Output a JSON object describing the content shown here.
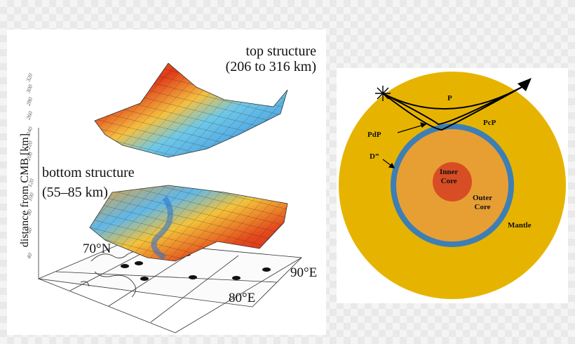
{
  "left_figure": {
    "top_structure": {
      "title": "top structure",
      "range": "(206 to 316 km)"
    },
    "bottom_structure": {
      "title": "bottom structure",
      "range": "(55–85 km)"
    },
    "y_axis_label": "distance from CMB [km]",
    "y_ticks_top": [
      "200",
      "220",
      "240",
      "260",
      "280",
      "300",
      "320"
    ],
    "y_ticks_bottom": [
      "40",
      "60",
      "80",
      "100",
      "120"
    ],
    "geo_labels": {
      "lat": "70°N",
      "lon1": "80°E",
      "lon2": "90°E"
    },
    "colors": {
      "high": "#d92c18",
      "mid": "#f5b22a",
      "low": "#3f8fe0"
    }
  },
  "right_figure": {
    "labels": {
      "p": "P",
      "pdp": "PdP",
      "pcp": "PcP",
      "d_double_prime": "D”",
      "inner_core": [
        "Inner",
        "Core"
      ],
      "outer_core": [
        "Outer",
        "Core"
      ],
      "mantle": "Mantle"
    },
    "colors": {
      "mantle": "#e6b400",
      "d_layer": "#3d7fb4",
      "outer_core": "#e79f33",
      "inner_core": "#d84d24"
    }
  }
}
